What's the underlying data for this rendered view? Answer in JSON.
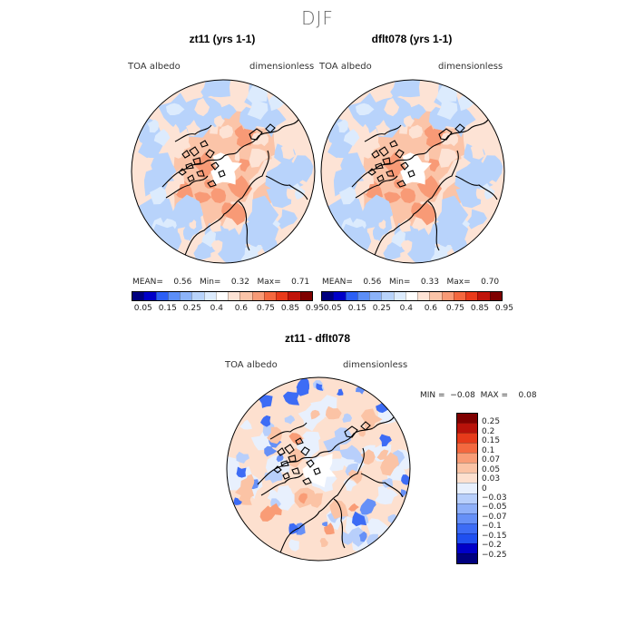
{
  "season_title": "DJF",
  "colors": {
    "abs_scale": [
      "#00007f",
      "#0000c8",
      "#2c5ff5",
      "#5c8ef7",
      "#8cb3f9",
      "#b8d3fb",
      "#dcebfd",
      "#ffffff",
      "#fde3d5",
      "#fbc4a8",
      "#f89a76",
      "#f4683f",
      "#e93a1a",
      "#c0140a",
      "#7f0000"
    ],
    "diff_scale": [
      "#00007f",
      "#0000c8",
      "#1f4ff0",
      "#3d6cf5",
      "#6690f7",
      "#8fb0f9",
      "#b8cffb",
      "#e8f0fd",
      "#fde0cf",
      "#fbc3a5",
      "#f99c76",
      "#f4683f",
      "#e63a1a",
      "#b8120a",
      "#7f0000"
    ]
  },
  "panels": [
    {
      "title": "zt11 (yrs 1-1)",
      "var_label": "TOA albedo",
      "units_label": "dimensionless",
      "stats_text": "MEAN=    0.56   Min=    0.32   Max=    0.71"
    },
    {
      "title": "dflt078 (yrs 1-1)",
      "var_label": "TOA albedo",
      "units_label": "dimensionless",
      "stats_text": "MEAN=    0.56   Min=    0.33   Max=    0.70"
    }
  ],
  "abs_ticks": [
    "0.05",
    "0.15",
    "0.25",
    "0.4",
    "0.6",
    "0.75",
    "0.85",
    "0.95"
  ],
  "diff_panel": {
    "title": "zt11 - dflt078",
    "var_label": "TOA albedo",
    "units_label": "dimensionless",
    "stats_text": "MIN =  −0.08  MAX =    0.08"
  },
  "diff_ticks": [
    "0.25",
    "0.2",
    "0.15",
    "0.1",
    "0.07",
    "0.05",
    "0.03",
    "0",
    "−0.03",
    "−0.05",
    "−0.07",
    "−0.1",
    "−0.15",
    "−0.2",
    "−0.25"
  ]
}
